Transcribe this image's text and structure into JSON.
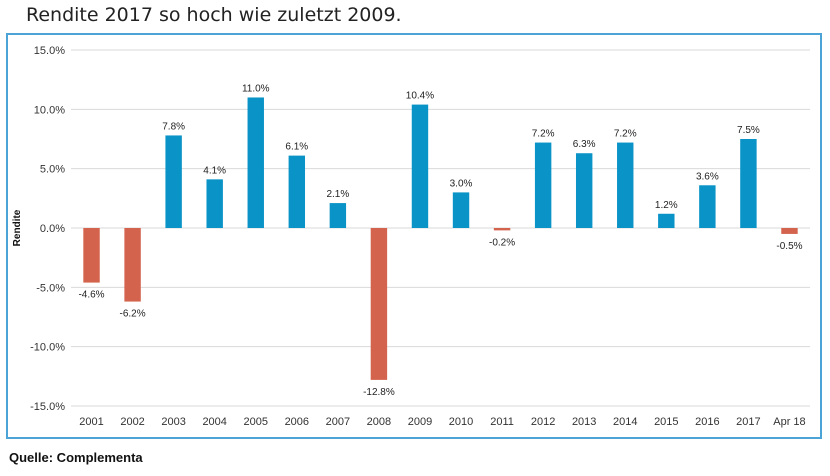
{
  "headline": "Rendite 2017 so hoch wie zuletzt 2009.",
  "source": "Quelle: Complementa",
  "colors": {
    "positive": "#0a93c6",
    "negative": "#d4634d",
    "gridline": "#d9d9d9",
    "frame": "#4ba3d6"
  },
  "chart_data": {
    "type": "bar",
    "title": "",
    "xlabel": "",
    "ylabel": "Rendite",
    "categories": [
      "2001",
      "2002",
      "2003",
      "2004",
      "2005",
      "2006",
      "2007",
      "2008",
      "2009",
      "2010",
      "2011",
      "2012",
      "2013",
      "2014",
      "2015",
      "2016",
      "2017",
      "Apr 18"
    ],
    "values": [
      -4.6,
      -6.2,
      7.8,
      4.1,
      11.0,
      6.1,
      2.1,
      -12.8,
      10.4,
      3.0,
      -0.2,
      7.2,
      6.3,
      7.2,
      1.2,
      3.6,
      7.5,
      -0.5
    ],
    "data_labels": [
      "-4.6%",
      "-6.2%",
      "7.8%",
      "4.1%",
      "11.0%",
      "6.1%",
      "2.1%",
      "-12.8%",
      "10.4%",
      "3.0%",
      "-0.2%",
      "7.2%",
      "6.3%",
      "7.2%",
      "1.2%",
      "3.6%",
      "7.5%",
      "-0.5%"
    ],
    "ylim": [
      -15,
      15
    ],
    "yticks": [
      15,
      10,
      5,
      0,
      -5,
      -10,
      -15
    ],
    "ytick_labels": [
      "15.0%",
      "10.0%",
      "5.0%",
      "0.0%",
      "-5.0%",
      "-10.0%",
      "-15.0%"
    ],
    "grid": true,
    "legend": "none"
  }
}
